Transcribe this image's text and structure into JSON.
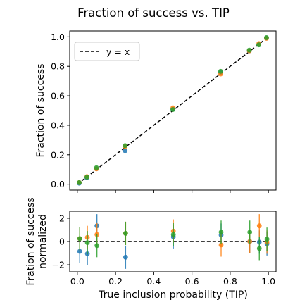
{
  "figure": {
    "title": "Fraction of success vs. TIP"
  },
  "colors": {
    "blue": "#1f77b4",
    "orange": "#ff7f0e",
    "green": "#2ca02c",
    "reference": "#000000"
  },
  "chart_data": [
    {
      "type": "scatter",
      "panel": "top",
      "ylabel": "Fraction of success",
      "xlim": [
        -0.04,
        1.04
      ],
      "ylim": [
        -0.04,
        1.04
      ],
      "y_ticks": [
        0.0,
        0.2,
        0.4,
        0.6,
        0.8,
        1.0
      ],
      "y_tick_labels": [
        "0.0",
        "0.2",
        "0.4",
        "0.6",
        "0.8",
        "1.0"
      ],
      "x_ticks": [
        0.0,
        0.2,
        0.4,
        0.6,
        0.8,
        1.0
      ],
      "legend": {
        "position": "top-left",
        "entries": [
          "y = x"
        ]
      },
      "reference_line": {
        "label": "y = x",
        "x": [
          0.0,
          1.0
        ],
        "y": [
          0.0,
          1.0
        ]
      },
      "series": [
        {
          "color": "blue",
          "x": [
            0.01,
            0.05,
            0.1,
            0.25,
            0.5,
            0.75,
            0.9,
            0.95,
            0.99
          ],
          "y": [
            0.007,
            0.045,
            0.105,
            0.227,
            0.51,
            0.758,
            0.905,
            0.948,
            0.992
          ]
        },
        {
          "color": "orange",
          "x": [
            0.01,
            0.05,
            0.1,
            0.25,
            0.5,
            0.75,
            0.9,
            0.95,
            0.99
          ],
          "y": [
            0.011,
            0.052,
            0.104,
            0.256,
            0.519,
            0.748,
            0.905,
            0.955,
            0.99
          ]
        },
        {
          "color": "green",
          "x": [
            0.01,
            0.05,
            0.1,
            0.25,
            0.5,
            0.75,
            0.9,
            0.95,
            0.99
          ],
          "y": [
            0.011,
            0.048,
            0.112,
            0.262,
            0.507,
            0.766,
            0.91,
            0.946,
            0.995
          ]
        }
      ]
    },
    {
      "type": "scatter",
      "panel": "bottom",
      "ylabel_lines": [
        "Fration of success",
        "normalized"
      ],
      "xlabel": "True inclusion probability (TIP)",
      "xlim": [
        -0.04,
        1.04
      ],
      "ylim": [
        -2.6,
        2.6
      ],
      "y_ticks": [
        -2,
        0,
        2
      ],
      "y_tick_labels": [
        "−2",
        "0",
        "2"
      ],
      "x_ticks": [
        0.0,
        0.2,
        0.4,
        0.6,
        0.8,
        1.0
      ],
      "x_tick_labels": [
        "0.0",
        "0.2",
        "0.4",
        "0.6",
        "0.8",
        "1.0"
      ],
      "reference_line": {
        "x": [
          0.0,
          1.0
        ],
        "y": [
          0.0,
          0.0
        ]
      },
      "series": [
        {
          "color": "blue",
          "x": [
            0.0125,
            0.0525,
            0.1025,
            0.2525,
            0.5025,
            0.7525,
            0.9025,
            0.9525,
            0.9925
          ],
          "y": [
            -0.85,
            -1.05,
            1.35,
            -1.35,
            0.4,
            0.55,
            0.0,
            -0.05,
            -0.2
          ],
          "err": [
            1.0,
            1.0,
            1.0,
            1.0,
            1.0,
            1.0,
            1.0,
            1.0,
            1.0
          ]
        },
        {
          "color": "orange",
          "x": [
            0.0125,
            0.0525,
            0.1025,
            0.2525,
            0.5025,
            0.7525,
            0.9025,
            0.9525,
            0.9925
          ],
          "y": [
            0.25,
            0.35,
            0.6,
            0.7,
            0.9,
            -0.3,
            0.0,
            1.35,
            -0.05
          ],
          "err": [
            1.0,
            1.0,
            1.0,
            1.0,
            1.0,
            1.0,
            1.0,
            1.0,
            1.0
          ]
        },
        {
          "color": "green",
          "x": [
            0.0125,
            0.0525,
            0.1025,
            0.2525,
            0.5025,
            0.7525,
            0.9025,
            0.9525,
            0.9925
          ],
          "y": [
            0.25,
            -0.1,
            -0.35,
            0.7,
            0.6,
            0.8,
            0.8,
            -0.6,
            0.2
          ],
          "err": [
            1.0,
            1.0,
            1.0,
            1.0,
            1.0,
            1.0,
            1.0,
            1.0,
            1.0
          ]
        }
      ]
    }
  ]
}
